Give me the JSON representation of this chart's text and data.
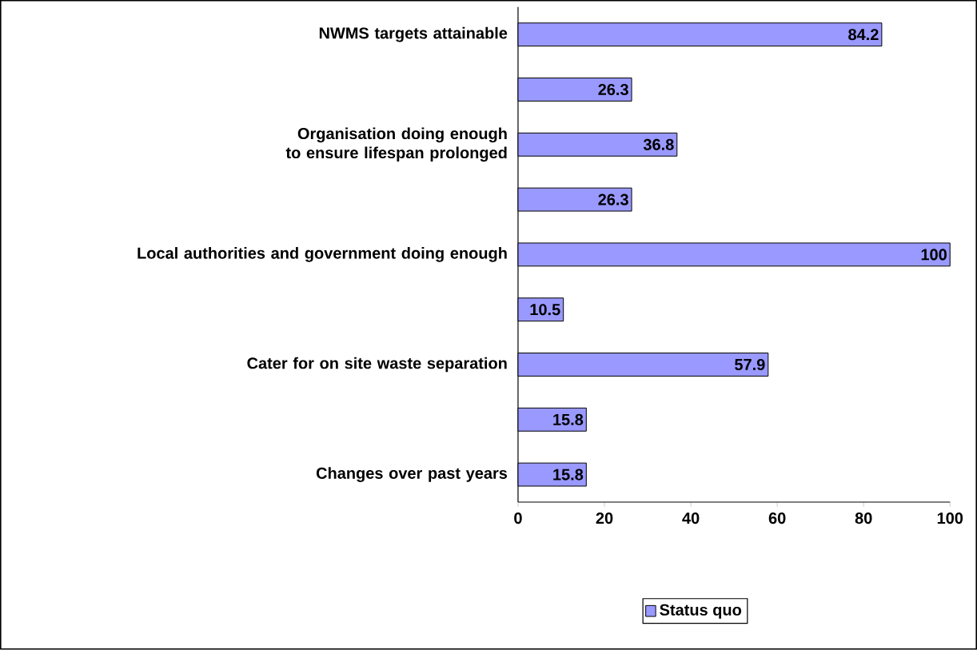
{
  "chart_data": {
    "type": "bar",
    "orientation": "horizontal",
    "categories": [
      "NWMS targets attainable",
      null,
      "Organisation doing enough to ensure lifespan prolonged",
      null,
      "Local authorities and government doing enough",
      null,
      "Cater for on site waste separation",
      null,
      "Changes over past years"
    ],
    "series": [
      {
        "name": "Status quo",
        "color": "#9999ff",
        "values": [
          84.2,
          26.3,
          36.8,
          26.3,
          100,
          10.5,
          57.9,
          15.8,
          15.8
        ]
      }
    ],
    "xlim": [
      0,
      100
    ],
    "xticks": [
      0,
      20,
      40,
      60,
      80,
      100
    ],
    "data_labels": true,
    "legend": "bottom"
  }
}
